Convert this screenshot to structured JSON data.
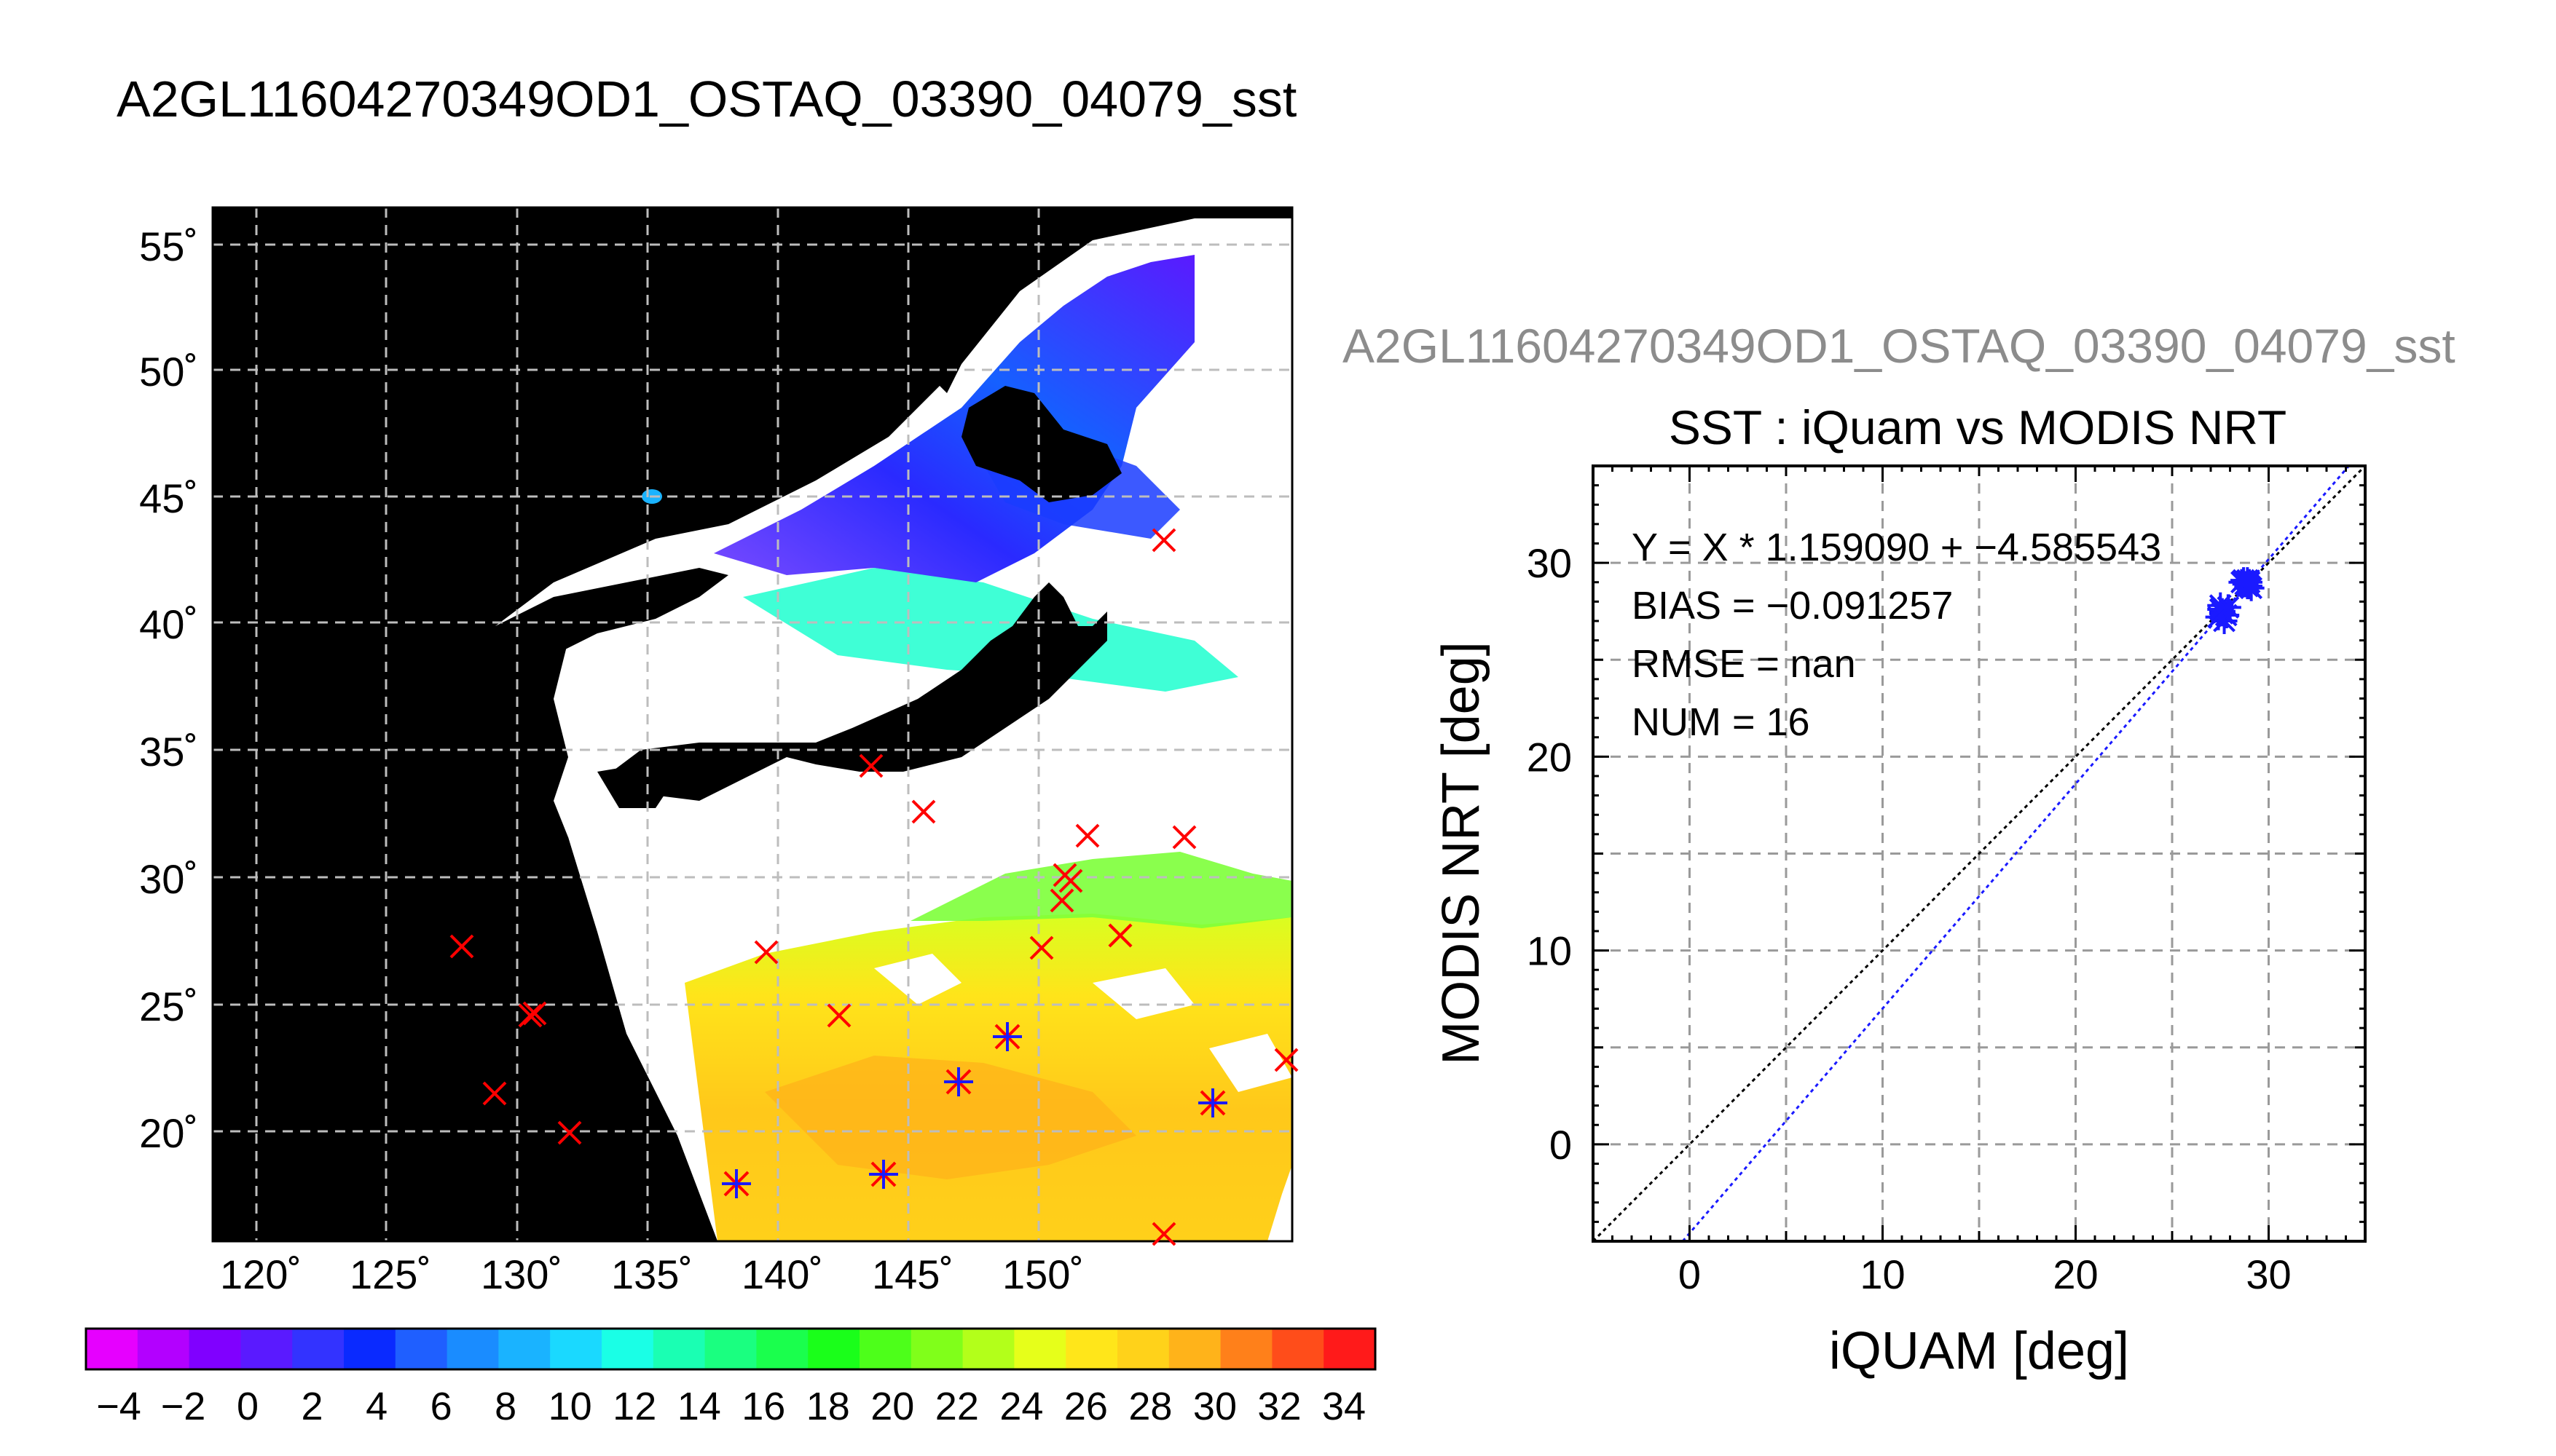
{
  "page_title": "A2GL11604270349OD1_OSTAQ_03390_04079_sst",
  "map": {
    "lon_ticks": [
      "120˚",
      "125˚",
      "130˚",
      "135˚",
      "140˚",
      "145˚",
      "150˚"
    ],
    "lat_ticks": [
      "55˚",
      "50˚",
      "45˚",
      "40˚",
      "35˚",
      "30˚",
      "25˚",
      "20˚"
    ],
    "colorbar_labels": [
      "−4",
      "−2",
      "0",
      "2",
      "4",
      "6",
      "8",
      "10",
      "12",
      "14",
      "16",
      "18",
      "20",
      "22",
      "24",
      "26",
      "28",
      "30",
      "32",
      "34"
    ],
    "colorbar_colors": [
      "#e600ff",
      "#b300ff",
      "#8000ff",
      "#5a1aff",
      "#3333ff",
      "#0a2aff",
      "#1f5fff",
      "#1a8cff",
      "#1ab3ff",
      "#1ad9ff",
      "#1affe6",
      "#1affb3",
      "#1aff80",
      "#1aff4d",
      "#1aff1a",
      "#4dff1a",
      "#80ff1a",
      "#b3ff1a",
      "#e6ff1a",
      "#ffe61a",
      "#ffd21a",
      "#ffb31a",
      "#ff801a",
      "#ff4d1a",
      "#ff1a1a"
    ]
  },
  "scatter_title": "A2GL11604270349OD1_OSTAQ_03390_04079_sst",
  "chart_data": {
    "type": "scatter",
    "title": "SST : iQuam vs MODIS NRT",
    "xlabel": "iQUAM [deg]",
    "ylabel": "MODIS NRT [deg]",
    "xlim": [
      -5,
      35
    ],
    "ylim": [
      -5,
      35
    ],
    "xticks": [
      "0",
      "10",
      "20",
      "30"
    ],
    "yticks": [
      "0",
      "10",
      "20",
      "30"
    ],
    "grid": true,
    "points": [
      {
        "x": 27.4,
        "y": 27.2
      },
      {
        "x": 27.6,
        "y": 27.5
      },
      {
        "x": 27.5,
        "y": 27.8
      },
      {
        "x": 27.8,
        "y": 27.3
      },
      {
        "x": 27.7,
        "y": 27.0
      },
      {
        "x": 27.6,
        "y": 27.4
      },
      {
        "x": 28.7,
        "y": 29.1
      },
      {
        "x": 28.9,
        "y": 28.8
      },
      {
        "x": 29.0,
        "y": 29.0
      },
      {
        "x": 28.8,
        "y": 28.9
      },
      {
        "x": 29.1,
        "y": 28.7
      },
      {
        "x": 28.6,
        "y": 29.0
      },
      {
        "x": 27.5,
        "y": 27.6
      },
      {
        "x": 27.9,
        "y": 27.7
      },
      {
        "x": 28.9,
        "y": 29.1
      },
      {
        "x": 29.0,
        "y": 28.8
      }
    ],
    "fit": {
      "slope": 1.15909,
      "intercept": -4.585543
    },
    "stats": {
      "equation": "Y = X * 1.159090 + −4.585543",
      "bias": "BIAS = −0.091257",
      "rmse": "RMSE = nan",
      "num": "NUM = 16"
    }
  }
}
